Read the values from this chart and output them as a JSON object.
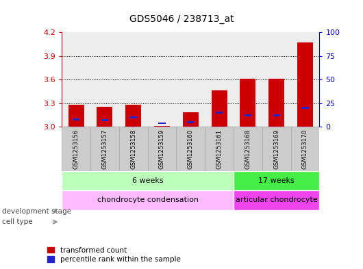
{
  "title": "GDS5046 / 238713_at",
  "samples": [
    "GSM1253156",
    "GSM1253157",
    "GSM1253158",
    "GSM1253159",
    "GSM1253160",
    "GSM1253161",
    "GSM1253168",
    "GSM1253169",
    "GSM1253170"
  ],
  "transformed_count": [
    3.28,
    3.26,
    3.28,
    3.01,
    3.19,
    3.46,
    3.61,
    3.61,
    4.07
  ],
  "percentile_rank_pct": [
    8,
    7,
    10,
    4,
    5,
    15,
    12,
    12,
    20
  ],
  "y_min": 3.0,
  "y_max": 4.2,
  "y_ticks": [
    3.0,
    3.3,
    3.6,
    3.9,
    4.2
  ],
  "y2_ticks": [
    0,
    25,
    50,
    75,
    100
  ],
  "bar_color_red": "#cc0000",
  "bar_color_blue": "#2222cc",
  "bar_width": 0.55,
  "dev_stage_groups": [
    {
      "label": "6 weeks",
      "start": 0,
      "end": 6,
      "color": "#bbffbb"
    },
    {
      "label": "17 weeks",
      "start": 6,
      "end": 9,
      "color": "#44ee44"
    }
  ],
  "cell_type_groups": [
    {
      "label": "chondrocyte condensation",
      "start": 0,
      "end": 6,
      "color": "#ffbbff"
    },
    {
      "label": "articular chondrocyte",
      "start": 6,
      "end": 9,
      "color": "#ee44ee"
    }
  ],
  "dev_stage_label": "development stage",
  "cell_type_label": "cell type",
  "legend_red": "transformed count",
  "legend_blue": "percentile rank within the sample",
  "left_axis_color": "#cc0000",
  "right_axis_color": "#0000cc",
  "sample_box_color": "#cccccc",
  "sample_box_edge": "#aaaaaa"
}
